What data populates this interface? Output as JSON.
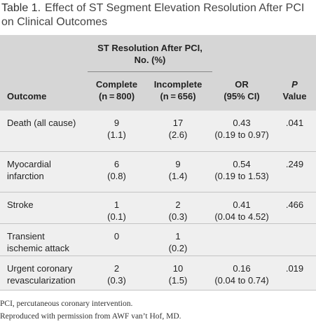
{
  "title": {
    "label": "Table 1.",
    "text": "Effect of ST Segment Elevation Resolution After PCI on Clinical Outcomes"
  },
  "table": {
    "group_header": [
      "ST Resolution After PCI,",
      "No. (%)"
    ],
    "columns": [
      [
        "Outcome"
      ],
      [
        "Complete",
        "(n = 800)"
      ],
      [
        "Incomplete",
        "(n = 656)"
      ],
      [
        "OR",
        "(95% CI)"
      ],
      [
        "P",
        "Value"
      ]
    ],
    "rows": [
      [
        [
          "Death (all cause)"
        ],
        [
          "9",
          "(1.1)"
        ],
        [
          "17",
          "(2.6)"
        ],
        [
          "0.43",
          "(0.19 to 0.97)"
        ],
        [
          ".041"
        ]
      ],
      [
        [
          "Myocardial",
          "infarction"
        ],
        [
          "6",
          "(0.8)"
        ],
        [
          "9",
          "(1.4)"
        ],
        [
          "0.54",
          "(0.19 to 1.53)"
        ],
        [
          ".249"
        ]
      ],
      [
        [
          "Stroke"
        ],
        [
          "1",
          "(0.1)"
        ],
        [
          "2",
          "(0.3)"
        ],
        [
          "0.41",
          "(0.04 to 4.52)"
        ],
        [
          ".466"
        ]
      ],
      [
        [
          "Transient",
          "ischemic attack"
        ],
        [
          "0"
        ],
        [
          "1",
          "(0.2)"
        ],
        null,
        null
      ],
      [
        [
          "Urgent coronary",
          "revascularization"
        ],
        [
          "2",
          "(0.3)"
        ],
        [
          "10",
          "(1.5)"
        ],
        [
          "0.16",
          "(0.04 to 0.74)"
        ],
        [
          ".019"
        ]
      ]
    ]
  },
  "footnotes": [
    "PCI, percutaneous coronary intervention.",
    "Reproduced with permission from AWF van’t Hof, MD."
  ]
}
